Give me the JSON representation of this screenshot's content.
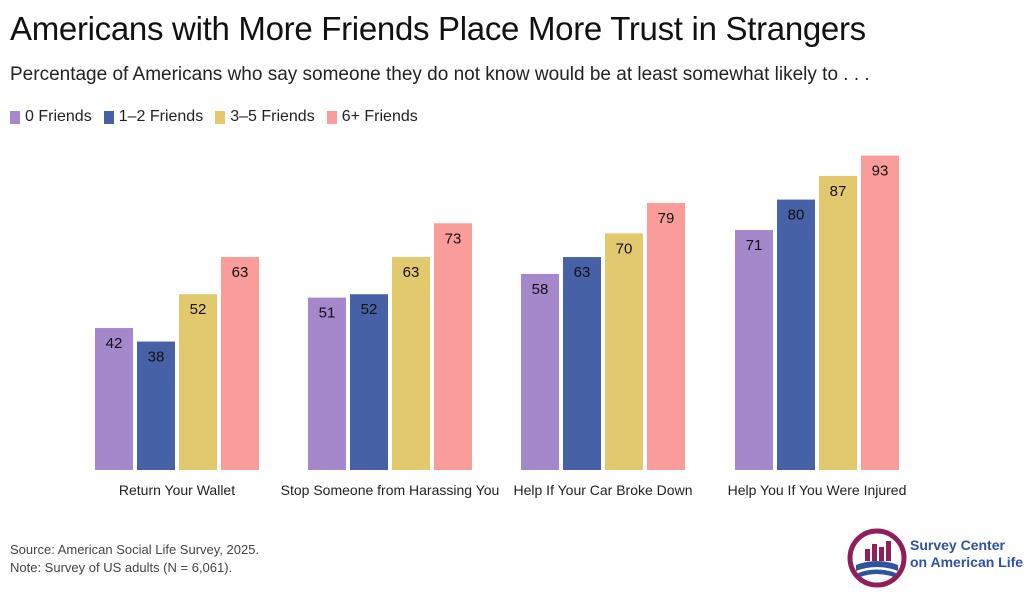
{
  "title": "Americans with More Friends Place More Trust in Strangers",
  "subtitle": "Percentage of Americans who say someone they do not know would be at least somewhat likely to . . .",
  "source_line": "Source: American Social Life Survey, 2025.",
  "note_line": "Note: Survey of US adults (N = 6,061).",
  "logo": {
    "line1": "Survey Center",
    "line2": "on American Life"
  },
  "colors": {
    "0 Friends": "#a587cc",
    "1–2 Friends": "#4661a6",
    "3–5 Friends": "#e3c96e",
    "6+ Friends": "#fa9c99"
  },
  "chart_data": {
    "type": "bar",
    "categories": [
      "Return Your Wallet",
      "Stop Someone from Harassing You",
      "Help If Your Car Broke Down",
      "Help You If You Were Injured"
    ],
    "series": [
      {
        "name": "0 Friends",
        "values": [
          42,
          51,
          58,
          71
        ]
      },
      {
        "name": "1–2 Friends",
        "values": [
          38,
          52,
          63,
          80
        ]
      },
      {
        "name": "3–5 Friends",
        "values": [
          52,
          63,
          70,
          87
        ]
      },
      {
        "name": "6+ Friends",
        "values": [
          63,
          73,
          79,
          93
        ]
      }
    ],
    "legend_position": "top-left",
    "grid": false
  }
}
